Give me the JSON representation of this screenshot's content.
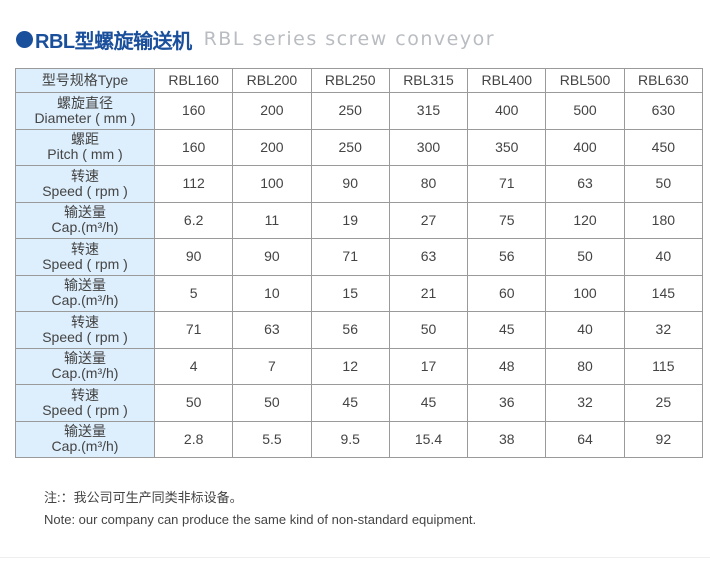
{
  "title": {
    "cn": "RBL型螺旋输送机",
    "en": "RBL series screw conveyor",
    "accent": "#1a4f9c"
  },
  "table": {
    "header": [
      "型号规格Type",
      "RBL160",
      "RBL200",
      "RBL250",
      "RBL315",
      "RBL400",
      "RBL500",
      "RBL630"
    ],
    "rows": [
      {
        "cn": "螺旋直径",
        "en": "Diameter ( mm )",
        "values": [
          "160",
          "200",
          "250",
          "315",
          "400",
          "500",
          "630"
        ]
      },
      {
        "cn": "螺距",
        "en": "Pitch ( mm )",
        "values": [
          "160",
          "200",
          "250",
          "300",
          "350",
          "400",
          "450"
        ]
      },
      {
        "cn": "转速",
        "en": "Speed ( rpm )",
        "values": [
          "112",
          "100",
          "90",
          "80",
          "71",
          "63",
          "50"
        ]
      },
      {
        "cn": "输送量",
        "en": "Cap.(m³/h)",
        "values": [
          "6.2",
          "11",
          "19",
          "27",
          "75",
          "120",
          "180"
        ]
      },
      {
        "cn": "转速",
        "en": "Speed ( rpm )",
        "values": [
          "90",
          "90",
          "71",
          "63",
          "56",
          "50",
          "40"
        ]
      },
      {
        "cn": "输送量",
        "en": "Cap.(m³/h)",
        "values": [
          "5",
          "10",
          "15",
          "21",
          "60",
          "100",
          "145"
        ]
      },
      {
        "cn": "转速",
        "en": "Speed ( rpm )",
        "values": [
          "71",
          "63",
          "56",
          "50",
          "45",
          "40",
          "32"
        ]
      },
      {
        "cn": "输送量",
        "en": "Cap.(m³/h)",
        "values": [
          "4",
          "7",
          "12",
          "17",
          "48",
          "80",
          "115"
        ]
      },
      {
        "cn": "转速",
        "en": "Speed ( rpm )",
        "values": [
          "50",
          "50",
          "45",
          "45",
          "36",
          "32",
          "25"
        ]
      },
      {
        "cn": "输送量",
        "en": "Cap.(m³/h)",
        "values": [
          "2.8",
          "5.5",
          "9.5",
          "15.4",
          "38",
          "64",
          "92"
        ]
      }
    ]
  },
  "notes": {
    "cn": "注:：我公司可生产同类非标设备。",
    "en": "Note: our company can produce the same kind of non-standard equipment."
  }
}
